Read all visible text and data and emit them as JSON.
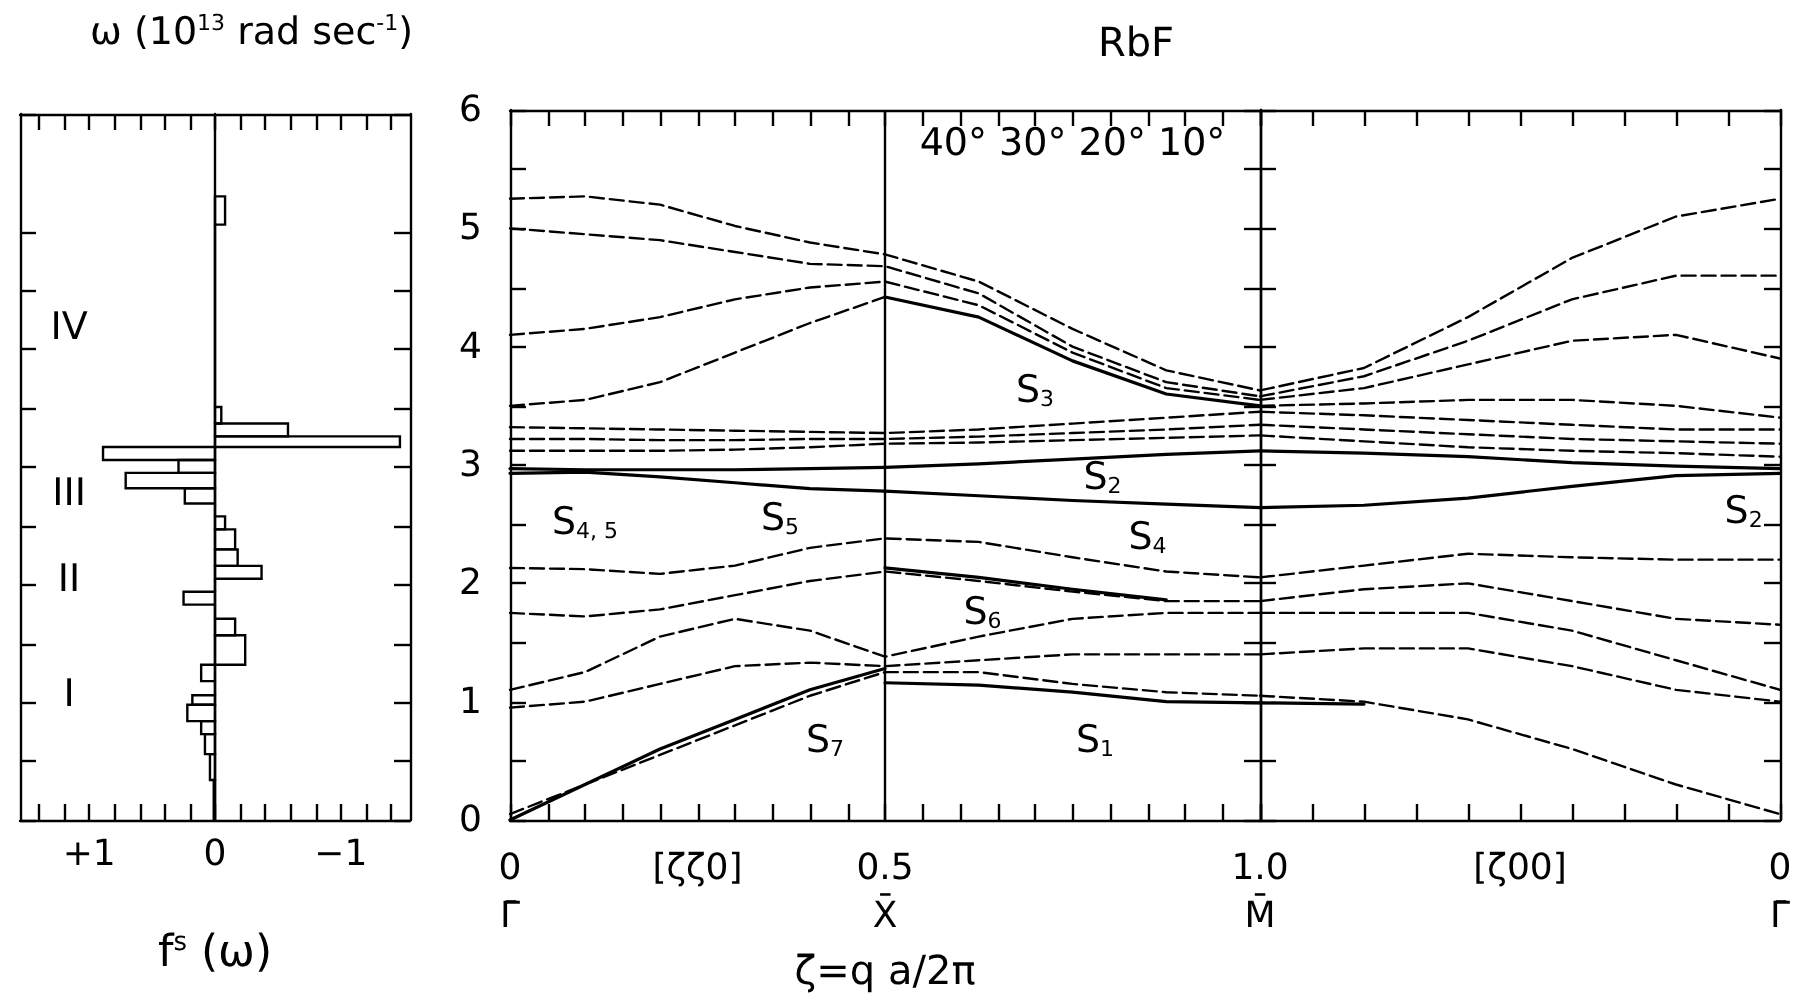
{
  "chart_data": [
    {
      "type": "histogram",
      "orientation": "horizontal",
      "xlabel": "f$^{s}$ (ω)",
      "color": "#000000",
      "bins": [
        0,
        0.34,
        0.56,
        0.73,
        0.84,
        0.98,
        1.06,
        1.18,
        1.32,
        1.57,
        1.71,
        1.83,
        1.94,
        2.05,
        2.16,
        2.3,
        2.47,
        2.58,
        2.69,
        2.82,
        2.95,
        3.06,
        3.17,
        3.26,
        3.37,
        3.51,
        5.06,
        5.3
      ],
      "values": [
        0.01,
        0.04,
        0.08,
        0.11,
        0.22,
        0.18,
        0,
        0.11,
        -0.24,
        -0.16,
        0,
        0.25,
        0,
        -0.37,
        -0.18,
        -0.16,
        -0.08,
        0,
        0.24,
        0.71,
        0.29,
        0.89,
        -1.47,
        -0.58,
        -0.05,
        0,
        -0.08
      ],
      "xlim": [
        1.55,
        -1.55
      ],
      "xticks": [
        {
          "value": 1.4,
          "label": null
        },
        {
          "value": 1.2,
          "label": null
        },
        {
          "value": 1,
          "label": "+1"
        },
        {
          "value": 0.8,
          "label": null
        },
        {
          "value": 0.6,
          "label": null
        },
        {
          "value": 0.4,
          "label": null
        },
        {
          "value": 0.2,
          "label": null
        },
        0,
        {
          "value": -0.2,
          "label": null
        },
        {
          "value": -0.4,
          "label": null
        },
        {
          "value": -0.6,
          "label": null
        },
        {
          "value": -0.8,
          "label": null
        },
        {
          "value": -1,
          "label": "−1"
        },
        {
          "value": -1.2,
          "label": null
        },
        {
          "value": -1.4,
          "label": null
        }
      ],
      "ylim": [
        0,
        6
      ],
      "yticks": [
        0,
        {
          "value": 0.5,
          "label": null
        },
        1,
        {
          "value": 1.5,
          "label": null
        },
        2,
        {
          "value": 2.5,
          "label": null
        },
        3,
        {
          "value": 3.5,
          "label": null
        },
        4,
        {
          "value": 4.5,
          "label": null
        },
        5,
        6
      ],
      "tick_labels": "x",
      "annotations": [
        "I",
        "II",
        "III",
        "IV"
      ]
    },
    {
      "type": "line",
      "title": "RbF",
      "ylabel": "ω (10$^{13}$ rad sec$^{-1}$)",
      "xlabel": "ζ=q a/2π",
      "marker": "none",
      "x": [
        0,
        0.1,
        0.2,
        0.3,
        0.4,
        0.5,
        0.625,
        0.75,
        0.875,
        1.0
      ],
      "xlim": [
        0,
        1
      ],
      "xticks": [
        {
          "value": 0,
          "label": "0\nΓ̄"
        },
        {
          "value": 0.05,
          "label": null
        },
        {
          "value": 0.1,
          "label": null
        },
        {
          "value": 0.15,
          "label": null
        },
        {
          "value": 0.2,
          "label": null
        },
        {
          "value": 0.25,
          "label": "[ζζ0]"
        },
        {
          "value": 0.3,
          "label": null
        },
        {
          "value": 0.35,
          "label": null
        },
        {
          "value": 0.4,
          "label": null
        },
        {
          "value": 0.45,
          "label": null
        },
        {
          "value": 0.5,
          "label": "0.5\nX̄"
        },
        {
          "value": 0.55,
          "label": null
        },
        {
          "value": 0.6,
          "label": null
        },
        {
          "value": 0.65,
          "label": null
        },
        {
          "value": 0.7,
          "label": null
        },
        {
          "value": 0.75,
          "label": null
        },
        {
          "value": 0.8,
          "label": null
        },
        {
          "value": 0.85,
          "label": null
        },
        {
          "value": 0.9,
          "label": null
        },
        {
          "value": 0.95,
          "label": null
        },
        {
          "value": 1.0,
          "label": null
        }
      ],
      "ylim": [
        0,
        6
      ],
      "yticks": [
        0,
        {
          "value": 0.5,
          "label": null
        },
        1,
        {
          "value": 1.5,
          "label": null
        },
        2,
        {
          "value": 2.5,
          "label": null
        },
        3,
        {
          "value": 3.5,
          "label": null
        },
        4,
        {
          "value": 4.5,
          "label": null
        },
        5,
        {
          "value": 5.5,
          "label": null
        },
        6
      ],
      "ref_lines": [
        {
          "axis": "x",
          "value": 0.5,
          "label": null
        }
      ],
      "series": [
        {
          "color": "#000000",
          "line_style": "dashed",
          "values": [
            5.25,
            5.27,
            5.2,
            5.02,
            4.88,
            4.78,
            4.55,
            4.15,
            3.8,
            3.63
          ]
        },
        {
          "color": "#000000",
          "line_style": "dashed",
          "values": [
            5.0,
            4.95,
            4.9,
            4.8,
            4.7,
            4.68,
            4.45,
            4.0,
            3.7,
            3.58
          ]
        },
        {
          "color": "#000000",
          "line_style": "dashed",
          "values": [
            4.1,
            4.15,
            4.25,
            4.4,
            4.5,
            4.55,
            4.35,
            3.95,
            3.65,
            3.55
          ]
        },
        {
          "color": "#000000",
          "line_style": "dashed",
          "values": [
            3.5,
            3.55,
            3.7,
            3.95,
            4.2,
            4.42,
            null,
            null,
            null,
            null
          ]
        },
        {
          "color": "#000000",
          "line_style": "solid",
          "values": [
            null,
            null,
            null,
            null,
            null,
            4.42,
            4.25,
            3.88,
            3.6,
            3.5
          ]
        },
        {
          "color": "#000000",
          "line_style": "dashed",
          "values": [
            3.32,
            3.31,
            3.3,
            3.29,
            3.28,
            3.27,
            3.3,
            3.35,
            3.4,
            3.45
          ]
        },
        {
          "color": "#000000",
          "line_style": "dashed",
          "values": [
            3.22,
            3.22,
            3.21,
            3.21,
            3.22,
            3.22,
            3.24,
            3.27,
            3.3,
            3.34
          ]
        },
        {
          "color": "#000000",
          "line_style": "dashed",
          "values": [
            3.12,
            3.12,
            3.12,
            3.13,
            3.15,
            3.18,
            3.19,
            3.21,
            3.23,
            3.25
          ]
        },
        {
          "color": "#000000",
          "line_style": "solid",
          "values": [
            2.97,
            2.96,
            2.96,
            2.96,
            2.97,
            2.98,
            3.01,
            3.05,
            3.09,
            3.12
          ]
        },
        {
          "color": "#000000",
          "line_style": "solid",
          "values": [
            2.93,
            2.94,
            2.9,
            2.85,
            2.8,
            2.78,
            2.74,
            2.7,
            2.67,
            2.64
          ]
        },
        {
          "color": "#000000",
          "line_style": "dashed",
          "values": [
            2.13,
            2.12,
            2.08,
            2.15,
            2.3,
            2.38,
            2.35,
            2.22,
            2.1,
            2.05
          ]
        },
        {
          "color": "#000000",
          "line_style": "solid",
          "values": [
            null,
            null,
            null,
            null,
            null,
            2.13,
            2.05,
            1.95,
            1.86,
            null
          ]
        },
        {
          "color": "#000000",
          "line_style": "dashed",
          "values": [
            1.75,
            1.72,
            1.78,
            1.9,
            2.02,
            2.1,
            2.02,
            1.93,
            1.85,
            1.85
          ]
        },
        {
          "color": "#000000",
          "line_style": "dashed",
          "values": [
            1.1,
            1.25,
            1.55,
            1.7,
            1.6,
            1.38,
            1.55,
            1.7,
            1.75,
            1.75
          ]
        },
        {
          "color": "#000000",
          "line_style": "dashed",
          "values": [
            0.95,
            1.0,
            1.15,
            1.3,
            1.33,
            1.3,
            1.35,
            1.4,
            1.4,
            1.4
          ]
        },
        {
          "color": "#000000",
          "line_style": "dashed",
          "values": [
            0.05,
            0.3,
            0.55,
            0.8,
            1.05,
            1.25,
            1.25,
            1.15,
            1.08,
            1.05
          ]
        },
        {
          "color": "#000000",
          "line_style": "solid",
          "values": [
            0,
            0.3,
            0.6,
            0.85,
            1.1,
            1.28,
            null,
            null,
            null,
            null
          ]
        },
        {
          "color": "#000000",
          "line_style": "solid",
          "values": [
            null,
            null,
            null,
            null,
            null,
            1.16,
            1.14,
            1.08,
            1.0,
            0.99
          ]
        }
      ],
      "annotations": [
        "40° 30° 20° 10°",
        "S$_{3}$",
        "S$_{2}$",
        "S$_{4}$",
        "S$_{5}$",
        "S$_{4, 5}$",
        "S$_{6}$",
        "S$_{7}$",
        "S$_{1}$"
      ]
    },
    {
      "type": "line",
      "marker": "none",
      "x": [
        1.0,
        0.8,
        0.6,
        0.4,
        0.2,
        0
      ],
      "xlim": [
        1,
        0
      ],
      "xticks": [
        {
          "value": 1.0,
          "label": "1.0\nM̄"
        },
        {
          "value": 0.9,
          "label": null
        },
        {
          "value": 0.8,
          "label": null
        },
        {
          "value": 0.7,
          "label": null
        },
        {
          "value": 0.6,
          "label": null
        },
        {
          "value": 0.5,
          "label": "[ζ00]"
        },
        {
          "value": 0.4,
          "label": null
        },
        {
          "value": 0.3,
          "label": null
        },
        {
          "value": 0.2,
          "label": null
        },
        {
          "value": 0.1,
          "label": null
        },
        {
          "value": 0,
          "label": "0\nΓ̄"
        }
      ],
      "ylim": [
        0,
        6
      ],
      "yticks": [
        0,
        {
          "value": 0.5,
          "label": null
        },
        1,
        {
          "value": 1.5,
          "label": null
        },
        2,
        {
          "value": 2.5,
          "label": null
        },
        3,
        {
          "value": 3.5,
          "label": null
        },
        4,
        {
          "value": 4.5,
          "label": null
        },
        5,
        {
          "value": 5.5,
          "label": null
        },
        6
      ],
      "tick_labels": "x",
      "series": [
        {
          "color": "#000000",
          "line_style": "dashed",
          "values": [
            3.63,
            3.82,
            4.25,
            4.75,
            5.1,
            5.25
          ]
        },
        {
          "color": "#000000",
          "line_style": "dashed",
          "values": [
            3.58,
            3.75,
            4.05,
            4.4,
            4.6,
            4.6
          ]
        },
        {
          "color": "#000000",
          "line_style": "dashed",
          "values": [
            3.55,
            3.65,
            3.85,
            4.05,
            4.1,
            3.9
          ]
        },
        {
          "color": "#000000",
          "line_style": "dashed",
          "values": [
            3.5,
            3.52,
            3.55,
            3.55,
            3.5,
            3.4
          ]
        },
        {
          "color": "#000000",
          "line_style": "dashed",
          "values": [
            3.45,
            3.42,
            3.38,
            3.34,
            3.3,
            3.3
          ]
        },
        {
          "color": "#000000",
          "line_style": "dashed",
          "values": [
            3.34,
            3.3,
            3.26,
            3.22,
            3.2,
            3.18
          ]
        },
        {
          "color": "#000000",
          "line_style": "dashed",
          "values": [
            3.25,
            3.2,
            3.15,
            3.12,
            3.1,
            3.07
          ]
        },
        {
          "color": "#000000",
          "line_style": "solid",
          "values": [
            3.12,
            3.1,
            3.07,
            3.02,
            2.99,
            2.97
          ]
        },
        {
          "color": "#000000",
          "line_style": "solid",
          "values": [
            2.64,
            2.66,
            2.72,
            2.82,
            2.91,
            2.93
          ]
        },
        {
          "color": "#000000",
          "line_style": "dashed",
          "values": [
            2.05,
            2.15,
            2.25,
            2.22,
            2.2,
            2.2
          ]
        },
        {
          "color": "#000000",
          "line_style": "dashed",
          "values": [
            1.85,
            1.95,
            2.0,
            1.85,
            1.7,
            1.65
          ]
        },
        {
          "color": "#000000",
          "line_style": "dashed",
          "values": [
            1.75,
            1.75,
            1.75,
            1.6,
            1.35,
            1.1
          ]
        },
        {
          "color": "#000000",
          "line_style": "dashed",
          "values": [
            1.4,
            1.45,
            1.45,
            1.3,
            1.1,
            1.0
          ]
        },
        {
          "color": "#000000",
          "line_style": "dashed",
          "values": [
            1.05,
            1.0,
            0.85,
            0.6,
            0.3,
            0.05
          ]
        },
        {
          "color": "#000000",
          "line_style": "solid",
          "values": [
            0.99,
            0.98,
            null,
            null,
            null,
            null
          ]
        }
      ],
      "annotations": [
        "S$_{2}$"
      ]
    }
  ]
}
